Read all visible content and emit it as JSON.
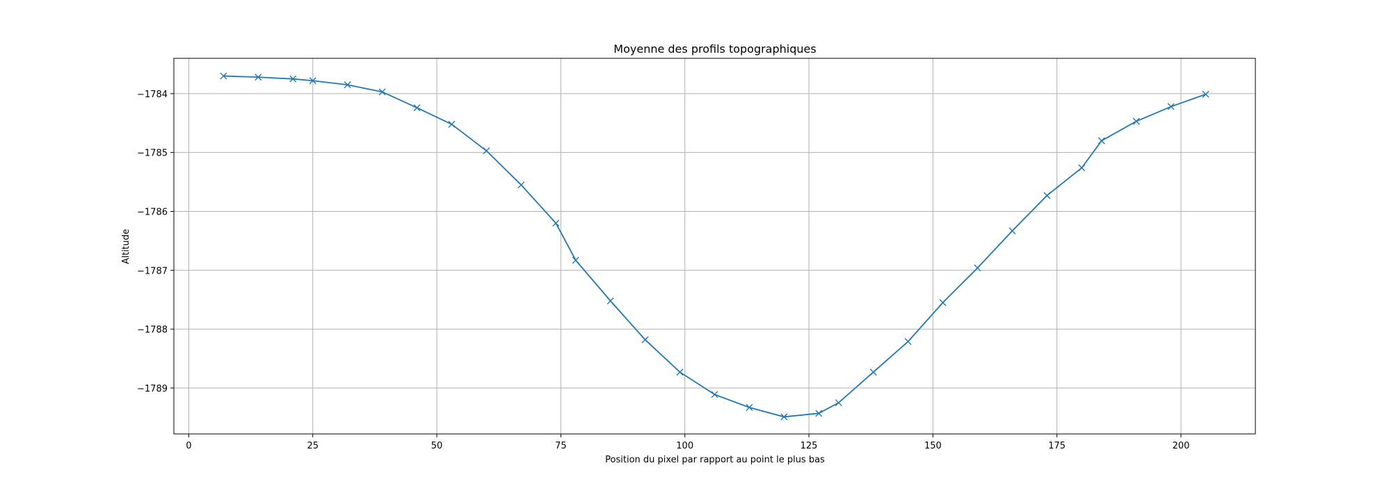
{
  "chart_data": {
    "type": "line",
    "title": "Moyenne des profils topographiques",
    "xlabel": "Position du pixel par rapport au point le plus bas",
    "ylabel": "Altitude",
    "xlim": [
      -3,
      215
    ],
    "ylim": [
      -1789.78,
      -1783.4
    ],
    "xticks": [
      0,
      25,
      50,
      75,
      100,
      125,
      150,
      175,
      200
    ],
    "yticks": [
      -1789,
      -1788,
      -1787,
      -1786,
      -1785,
      -1784
    ],
    "ytick_labels": [
      "−1789",
      "−1788",
      "−1787",
      "−1786",
      "−1785",
      "−1784"
    ],
    "grid": true,
    "marker": "x",
    "color": "#1f77b4",
    "series": [
      {
        "x": [
          7,
          14,
          21,
          25,
          32,
          39,
          46,
          53,
          60,
          67,
          74,
          78,
          85,
          92,
          99,
          106,
          113,
          120,
          127,
          131,
          138,
          145,
          152,
          159,
          166,
          173,
          180,
          184,
          191,
          198,
          205
        ],
        "y": [
          -1783.7,
          -1783.72,
          -1783.75,
          -1783.78,
          -1783.85,
          -1783.97,
          -1784.24,
          -1784.52,
          -1784.97,
          -1785.55,
          -1786.2,
          -1786.83,
          -1787.52,
          -1788.18,
          -1788.73,
          -1789.11,
          -1789.33,
          -1789.49,
          -1789.43,
          -1789.25,
          -1788.73,
          -1788.21,
          -1787.55,
          -1786.96,
          -1786.33,
          -1785.73,
          -1785.26,
          -1784.8,
          -1784.47,
          -1784.22,
          -1784.01
        ]
      }
    ]
  }
}
